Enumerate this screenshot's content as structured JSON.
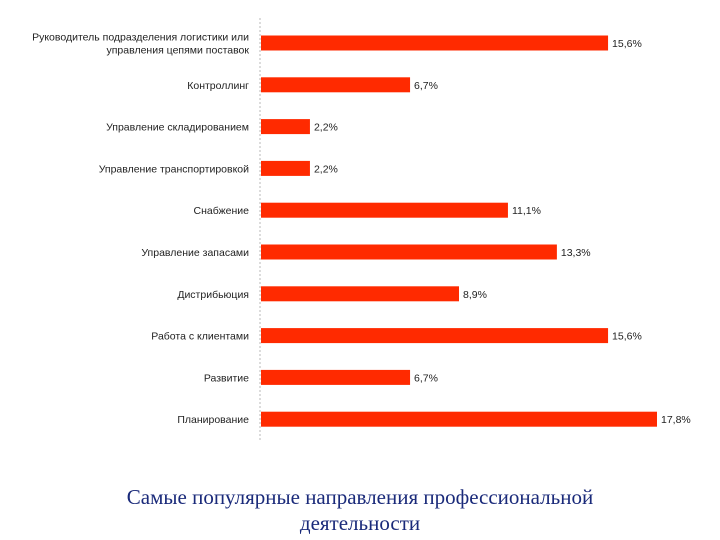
{
  "chart_data": {
    "type": "bar",
    "orientation": "horizontal",
    "title": "",
    "xlabel": "",
    "ylabel": "",
    "xlim": [
      0,
      18
    ],
    "grid": false,
    "legend": "none",
    "bar_color": "#ff2a00",
    "categories": [
      [
        "Руководитель подразделения логистики или",
        "управления цепями поставок"
      ],
      [
        "Контроллинг"
      ],
      [
        "Управление складированием"
      ],
      [
        "Управление транспортировкой"
      ],
      [
        "Снабжение"
      ],
      [
        "Управление запасами"
      ],
      [
        "Дистрибьюция"
      ],
      [
        "Работа с клиентами"
      ],
      [
        "Развитие"
      ],
      [
        "Планирование"
      ]
    ],
    "values": [
      15.6,
      6.7,
      2.2,
      2.2,
      11.1,
      13.3,
      8.9,
      15.6,
      6.7,
      17.8
    ],
    "value_labels": [
      "15,6%",
      "6,7%",
      "2,2%",
      "2,2%",
      "11,1%",
      "13,3%",
      "8,9%",
      "15,6%",
      "6,7%",
      "17,8%"
    ]
  },
  "caption": {
    "line1": "Самые популярные направления профессиональной",
    "line2": "деятельности"
  }
}
